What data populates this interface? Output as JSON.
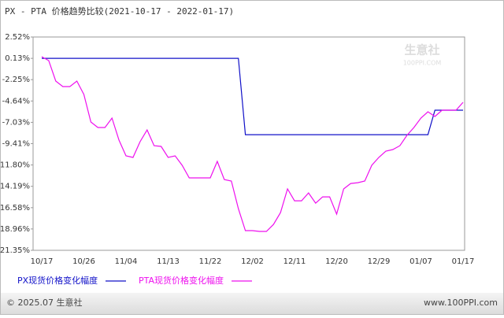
{
  "chart_data": {
    "type": "line",
    "title": "PX - PTA 价格趋势比较(2021-10-17 - 2022-01-17)",
    "categories": [
      "10/17",
      null,
      null,
      null,
      null,
      null,
      "10/26",
      null,
      null,
      null,
      null,
      null,
      "11/04",
      null,
      null,
      null,
      null,
      null,
      "11/13",
      null,
      null,
      null,
      null,
      null,
      "11/22",
      null,
      null,
      null,
      null,
      null,
      "12/02",
      null,
      null,
      null,
      null,
      null,
      "12/11",
      null,
      null,
      null,
      null,
      null,
      "12/20",
      null,
      null,
      null,
      null,
      null,
      "12/29",
      null,
      null,
      null,
      null,
      null,
      "01/07",
      null,
      null,
      null,
      null,
      null,
      "01/17"
    ],
    "series": [
      {
        "name": "PX现货价格变化幅度",
        "color": "#1010c8",
        "values": [
          0.13,
          0.13,
          0.13,
          0.13,
          0.13,
          0.13,
          0.13,
          0.13,
          0.13,
          0.13,
          0.13,
          0.13,
          0.13,
          0.13,
          0.13,
          0.13,
          0.13,
          0.13,
          0.13,
          0.13,
          0.13,
          0.13,
          0.13,
          0.13,
          0.13,
          0.13,
          0.13,
          0.13,
          0.13,
          -8.41,
          -8.41,
          -8.41,
          -8.41,
          -8.41,
          -8.41,
          -8.41,
          -8.41,
          -8.41,
          -8.41,
          -8.41,
          -8.41,
          -8.41,
          -8.41,
          -8.41,
          -8.41,
          -8.41,
          -8.41,
          -8.41,
          -8.41,
          -8.41,
          -8.41,
          -8.41,
          -8.41,
          -8.41,
          -8.41,
          -8.41,
          -5.67,
          -5.67,
          -5.67,
          -5.67,
          -5.67
        ]
      },
      {
        "name": "PTA现货价格变化幅度",
        "color": "#ee10ee",
        "values": [
          0.32,
          -0.12,
          -2.41,
          -3.03,
          -3.03,
          -2.41,
          -3.91,
          -6.99,
          -7.61,
          -7.61,
          -6.55,
          -9.02,
          -10.78,
          -10.96,
          -9.2,
          -7.88,
          -9.64,
          -9.72,
          -10.96,
          -10.78,
          -11.84,
          -13.25,
          -13.25,
          -13.25,
          -13.25,
          -11.4,
          -13.43,
          -13.6,
          -16.69,
          -19.15,
          -19.15,
          -19.24,
          -19.24,
          -18.45,
          -17.13,
          -14.48,
          -15.81,
          -15.81,
          -14.93,
          -16.07,
          -15.37,
          -15.37,
          -17.3,
          -14.48,
          -13.87,
          -13.78,
          -13.6,
          -11.84,
          -10.96,
          -10.25,
          -10.08,
          -9.64,
          -8.49,
          -7.61,
          -6.55,
          -5.85,
          -6.38,
          -5.67,
          -5.67,
          -5.67,
          -4.79
        ]
      }
    ],
    "ylim": [
      -21.35,
      2.52
    ],
    "yticks": [
      {
        "value": 2.52,
        "label": "2.52%"
      },
      {
        "value": 0.13,
        "label": "0.13%"
      },
      {
        "value": -2.25,
        "label": "-2.25%"
      },
      {
        "value": -4.64,
        "label": "-4.64%"
      },
      {
        "value": -7.03,
        "label": "-7.03%"
      },
      {
        "value": -9.41,
        "label": "-9.41%"
      },
      {
        "value": -11.8,
        "label": "-11.80%"
      },
      {
        "value": -14.19,
        "label": "-14.19%"
      },
      {
        "value": -16.58,
        "label": "-16.58%"
      },
      {
        "value": -18.96,
        "label": "-18.96%"
      },
      {
        "value": -21.35,
        "label": "-21.35%"
      }
    ],
    "grid": false,
    "watermark": "生意社",
    "watermark_sub": "100PPI.COM",
    "footer_left": "© 2025.07 生意社",
    "footer_right": "www.100PPI.com"
  }
}
